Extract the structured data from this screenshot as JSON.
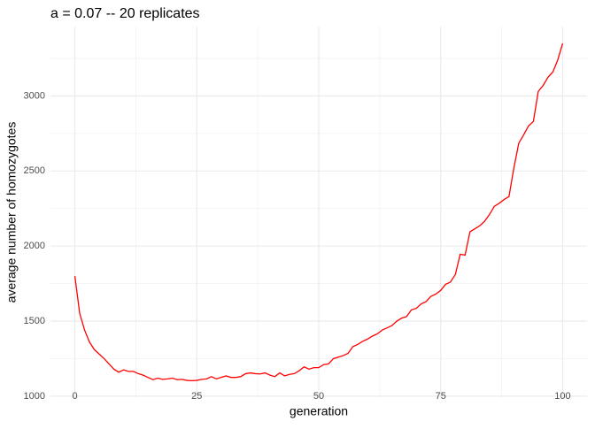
{
  "chart_data": {
    "type": "line",
    "title": "a = 0.07 -- 20 replicates",
    "xlabel": "generation",
    "ylabel": "average number of homozygotes",
    "x": [
      0,
      1,
      2,
      3,
      4,
      5,
      6,
      7,
      8,
      9,
      10,
      11,
      12,
      13,
      14,
      15,
      16,
      17,
      18,
      19,
      20,
      21,
      22,
      23,
      24,
      25,
      26,
      27,
      28,
      29,
      30,
      31,
      32,
      33,
      34,
      35,
      36,
      37,
      38,
      39,
      40,
      41,
      42,
      43,
      44,
      45,
      46,
      47,
      48,
      49,
      50,
      51,
      52,
      53,
      54,
      55,
      56,
      57,
      58,
      59,
      60,
      61,
      62,
      63,
      64,
      65,
      66,
      67,
      68,
      69,
      70,
      71,
      72,
      73,
      74,
      75,
      76,
      77,
      78,
      79,
      80,
      81,
      82,
      83,
      84,
      85,
      86,
      87,
      88,
      89,
      90,
      91,
      92,
      93,
      94,
      95,
      96,
      97,
      98,
      99,
      100
    ],
    "series": [
      {
        "color": "#ff0000",
        "values": [
          1800,
          1550,
          1440,
          1360,
          1310,
          1280,
          1250,
          1215,
          1180,
          1160,
          1175,
          1165,
          1165,
          1150,
          1140,
          1125,
          1110,
          1120,
          1112,
          1115,
          1120,
          1110,
          1112,
          1105,
          1103,
          1105,
          1112,
          1115,
          1130,
          1115,
          1125,
          1135,
          1125,
          1125,
          1130,
          1150,
          1155,
          1150,
          1148,
          1155,
          1140,
          1130,
          1155,
          1135,
          1145,
          1150,
          1170,
          1195,
          1180,
          1190,
          1190,
          1210,
          1215,
          1250,
          1260,
          1270,
          1285,
          1330,
          1345,
          1365,
          1380,
          1400,
          1415,
          1440,
          1455,
          1470,
          1500,
          1520,
          1530,
          1575,
          1585,
          1615,
          1630,
          1665,
          1680,
          1705,
          1745,
          1760,
          1810,
          1945,
          1940,
          2095,
          2115,
          2135,
          2165,
          2210,
          2265,
          2285,
          2310,
          2330,
          2520,
          2685,
          2740,
          2800,
          2830,
          3030,
          3070,
          3125,
          3160,
          3240,
          3350
        ]
      }
    ],
    "xlim": [
      -5,
      105
    ],
    "xticks": [
      0,
      25,
      50,
      75,
      100
    ],
    "xminorticks": [
      12.5,
      37.5,
      62.5,
      87.5
    ],
    "ylim": [
      987.5,
      3462.5
    ],
    "yticks": [
      1000,
      1500,
      2000,
      2500,
      3000
    ],
    "yminorticks": [
      1250,
      1750,
      2250,
      2750,
      3250
    ],
    "grid": true
  }
}
